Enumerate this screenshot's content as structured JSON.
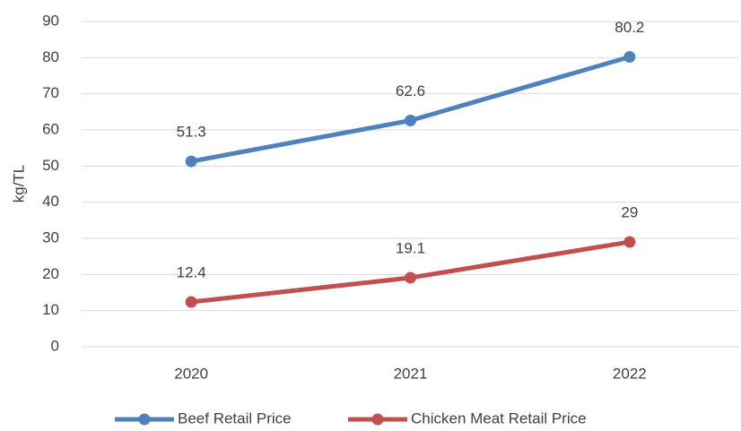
{
  "chart_data": {
    "type": "line",
    "y_label": "kg/TL",
    "categories": [
      "2020",
      "2021",
      "2022"
    ],
    "series": [
      {
        "name": "Beef Retail Price",
        "color": "#4f81bd",
        "values": [
          51.3,
          62.6,
          80.2
        ]
      },
      {
        "name": "Chicken Meat Retail Price",
        "color": "#c0504d",
        "values": [
          12.4,
          19.1,
          29
        ]
      }
    ],
    "ylim": [
      0,
      90
    ],
    "yticks": [
      0,
      10,
      20,
      30,
      40,
      50,
      60,
      70,
      80,
      90
    ],
    "grid": true,
    "legend": "bottom"
  }
}
